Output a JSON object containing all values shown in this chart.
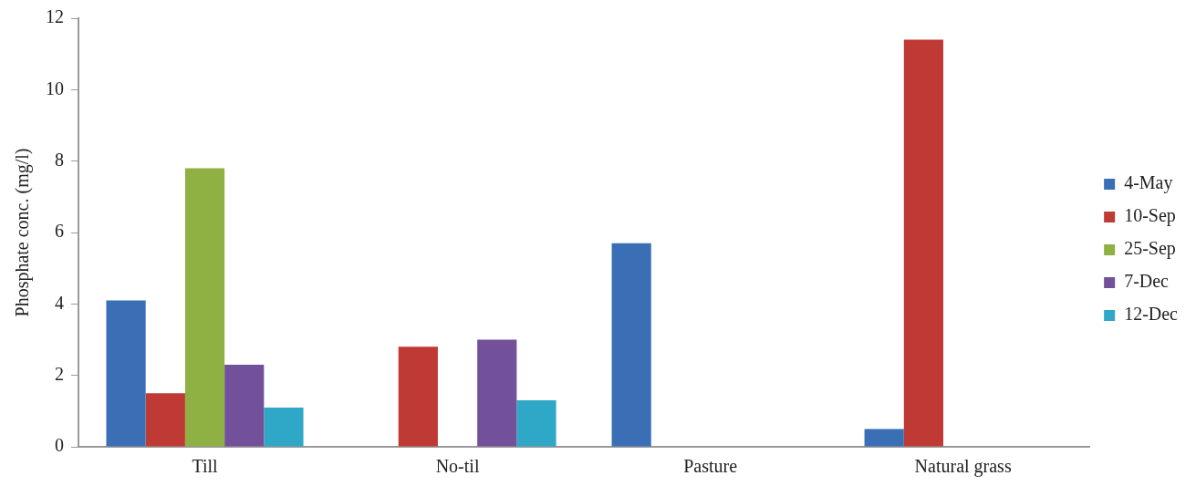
{
  "chart_data": {
    "type": "bar",
    "ylabel": "Phosphate conc. (mg/l)",
    "categories": [
      "Till",
      "No-til",
      "Pasture",
      "Natural grass"
    ],
    "series": [
      {
        "name": "4-May",
        "color": "#3a6fb5",
        "values": [
          4.1,
          0,
          5.7,
          0.5
        ]
      },
      {
        "name": "10-Sep",
        "color": "#c03a35",
        "values": [
          1.5,
          2.8,
          0,
          11.4
        ]
      },
      {
        "name": "25-Sep",
        "color": "#8fb043",
        "values": [
          7.8,
          0,
          0,
          0
        ]
      },
      {
        "name": "7-Dec",
        "color": "#72519a",
        "values": [
          2.3,
          3.0,
          0,
          0
        ]
      },
      {
        "name": "12-Dec",
        "color": "#2fa7c6",
        "values": [
          1.1,
          1.3,
          0,
          0
        ]
      }
    ],
    "ylim": [
      0,
      12
    ],
    "yticks": [
      0,
      2,
      4,
      6,
      8,
      10,
      12
    ],
    "grid": false,
    "legend": "right"
  }
}
